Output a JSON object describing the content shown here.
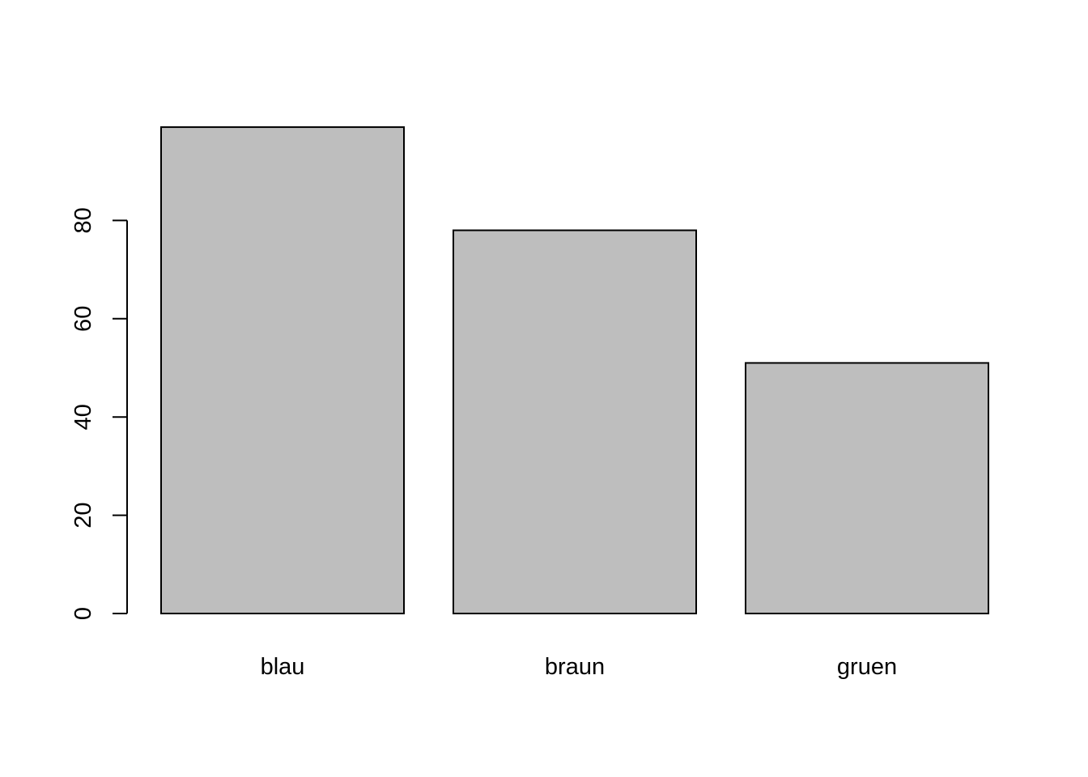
{
  "chart_data": {
    "type": "bar",
    "categories": [
      "blau",
      "braun",
      "gruen"
    ],
    "values": [
      99,
      78,
      51
    ],
    "title": "",
    "xlabel": "",
    "ylabel": "",
    "ylim": [
      0,
      99
    ],
    "yticks": [
      0,
      20,
      40,
      60,
      80
    ],
    "ytick_labels": [
      "0",
      "20",
      "40",
      "60",
      "80"
    ],
    "grid": false,
    "bar_color": "#bebebe",
    "outline_color": "#000000"
  }
}
